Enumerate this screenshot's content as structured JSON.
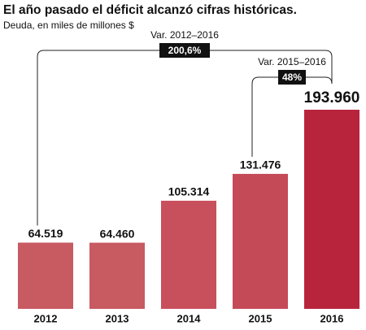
{
  "chart_data": {
    "type": "bar",
    "title": "El año pasado el déficit alcanzó cifras históricas.",
    "subtitle": "Deuda, en miles de millones $",
    "categories": [
      "2012",
      "2013",
      "2014",
      "2015",
      "2016"
    ],
    "values": [
      64519,
      64460,
      105314,
      131476,
      193960
    ],
    "value_labels": [
      "64.519",
      "64.460",
      "105.314",
      "131.476",
      "193.960"
    ],
    "colors": [
      "#c85a62",
      "#c85a62",
      "#c8505c",
      "#c54a58",
      "#b8243c"
    ],
    "annotations": [
      {
        "text": "Var. 2012–2016",
        "badge": "200,6%"
      },
      {
        "text": "Var. 2015–2016",
        "badge": "48%"
      }
    ]
  }
}
